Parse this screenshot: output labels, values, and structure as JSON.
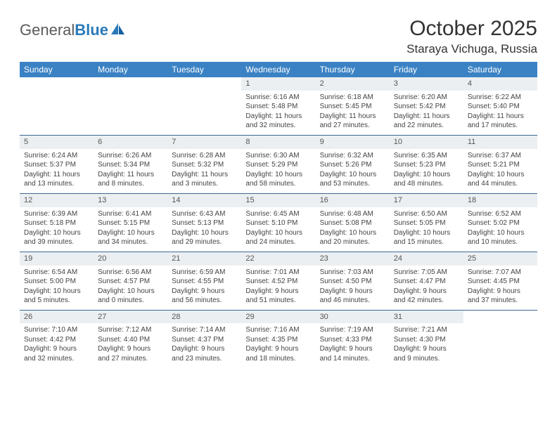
{
  "logo": {
    "text1": "General",
    "text2": "Blue"
  },
  "title": "October 2025",
  "location": "Staraya Vichuga, Russia",
  "colors": {
    "header_bg": "#3b82c4",
    "header_text": "#ffffff",
    "daynum_bg": "#eceff1",
    "row_border": "#3b6a94",
    "text": "#444444",
    "logo_gray": "#5a5a5a",
    "logo_blue": "#2a7ab8"
  },
  "weekdays": [
    "Sunday",
    "Monday",
    "Tuesday",
    "Wednesday",
    "Thursday",
    "Friday",
    "Saturday"
  ],
  "weeks": [
    [
      {
        "empty": true
      },
      {
        "empty": true
      },
      {
        "empty": true
      },
      {
        "num": "1",
        "l1": "Sunrise: 6:16 AM",
        "l2": "Sunset: 5:48 PM",
        "l3": "Daylight: 11 hours",
        "l4": "and 32 minutes."
      },
      {
        "num": "2",
        "l1": "Sunrise: 6:18 AM",
        "l2": "Sunset: 5:45 PM",
        "l3": "Daylight: 11 hours",
        "l4": "and 27 minutes."
      },
      {
        "num": "3",
        "l1": "Sunrise: 6:20 AM",
        "l2": "Sunset: 5:42 PM",
        "l3": "Daylight: 11 hours",
        "l4": "and 22 minutes."
      },
      {
        "num": "4",
        "l1": "Sunrise: 6:22 AM",
        "l2": "Sunset: 5:40 PM",
        "l3": "Daylight: 11 hours",
        "l4": "and 17 minutes."
      }
    ],
    [
      {
        "num": "5",
        "l1": "Sunrise: 6:24 AM",
        "l2": "Sunset: 5:37 PM",
        "l3": "Daylight: 11 hours",
        "l4": "and 13 minutes."
      },
      {
        "num": "6",
        "l1": "Sunrise: 6:26 AM",
        "l2": "Sunset: 5:34 PM",
        "l3": "Daylight: 11 hours",
        "l4": "and 8 minutes."
      },
      {
        "num": "7",
        "l1": "Sunrise: 6:28 AM",
        "l2": "Sunset: 5:32 PM",
        "l3": "Daylight: 11 hours",
        "l4": "and 3 minutes."
      },
      {
        "num": "8",
        "l1": "Sunrise: 6:30 AM",
        "l2": "Sunset: 5:29 PM",
        "l3": "Daylight: 10 hours",
        "l4": "and 58 minutes."
      },
      {
        "num": "9",
        "l1": "Sunrise: 6:32 AM",
        "l2": "Sunset: 5:26 PM",
        "l3": "Daylight: 10 hours",
        "l4": "and 53 minutes."
      },
      {
        "num": "10",
        "l1": "Sunrise: 6:35 AM",
        "l2": "Sunset: 5:23 PM",
        "l3": "Daylight: 10 hours",
        "l4": "and 48 minutes."
      },
      {
        "num": "11",
        "l1": "Sunrise: 6:37 AM",
        "l2": "Sunset: 5:21 PM",
        "l3": "Daylight: 10 hours",
        "l4": "and 44 minutes."
      }
    ],
    [
      {
        "num": "12",
        "l1": "Sunrise: 6:39 AM",
        "l2": "Sunset: 5:18 PM",
        "l3": "Daylight: 10 hours",
        "l4": "and 39 minutes."
      },
      {
        "num": "13",
        "l1": "Sunrise: 6:41 AM",
        "l2": "Sunset: 5:15 PM",
        "l3": "Daylight: 10 hours",
        "l4": "and 34 minutes."
      },
      {
        "num": "14",
        "l1": "Sunrise: 6:43 AM",
        "l2": "Sunset: 5:13 PM",
        "l3": "Daylight: 10 hours",
        "l4": "and 29 minutes."
      },
      {
        "num": "15",
        "l1": "Sunrise: 6:45 AM",
        "l2": "Sunset: 5:10 PM",
        "l3": "Daylight: 10 hours",
        "l4": "and 24 minutes."
      },
      {
        "num": "16",
        "l1": "Sunrise: 6:48 AM",
        "l2": "Sunset: 5:08 PM",
        "l3": "Daylight: 10 hours",
        "l4": "and 20 minutes."
      },
      {
        "num": "17",
        "l1": "Sunrise: 6:50 AM",
        "l2": "Sunset: 5:05 PM",
        "l3": "Daylight: 10 hours",
        "l4": "and 15 minutes."
      },
      {
        "num": "18",
        "l1": "Sunrise: 6:52 AM",
        "l2": "Sunset: 5:02 PM",
        "l3": "Daylight: 10 hours",
        "l4": "and 10 minutes."
      }
    ],
    [
      {
        "num": "19",
        "l1": "Sunrise: 6:54 AM",
        "l2": "Sunset: 5:00 PM",
        "l3": "Daylight: 10 hours",
        "l4": "and 5 minutes."
      },
      {
        "num": "20",
        "l1": "Sunrise: 6:56 AM",
        "l2": "Sunset: 4:57 PM",
        "l3": "Daylight: 10 hours",
        "l4": "and 0 minutes."
      },
      {
        "num": "21",
        "l1": "Sunrise: 6:59 AM",
        "l2": "Sunset: 4:55 PM",
        "l3": "Daylight: 9 hours",
        "l4": "and 56 minutes."
      },
      {
        "num": "22",
        "l1": "Sunrise: 7:01 AM",
        "l2": "Sunset: 4:52 PM",
        "l3": "Daylight: 9 hours",
        "l4": "and 51 minutes."
      },
      {
        "num": "23",
        "l1": "Sunrise: 7:03 AM",
        "l2": "Sunset: 4:50 PM",
        "l3": "Daylight: 9 hours",
        "l4": "and 46 minutes."
      },
      {
        "num": "24",
        "l1": "Sunrise: 7:05 AM",
        "l2": "Sunset: 4:47 PM",
        "l3": "Daylight: 9 hours",
        "l4": "and 42 minutes."
      },
      {
        "num": "25",
        "l1": "Sunrise: 7:07 AM",
        "l2": "Sunset: 4:45 PM",
        "l3": "Daylight: 9 hours",
        "l4": "and 37 minutes."
      }
    ],
    [
      {
        "num": "26",
        "l1": "Sunrise: 7:10 AM",
        "l2": "Sunset: 4:42 PM",
        "l3": "Daylight: 9 hours",
        "l4": "and 32 minutes."
      },
      {
        "num": "27",
        "l1": "Sunrise: 7:12 AM",
        "l2": "Sunset: 4:40 PM",
        "l3": "Daylight: 9 hours",
        "l4": "and 27 minutes."
      },
      {
        "num": "28",
        "l1": "Sunrise: 7:14 AM",
        "l2": "Sunset: 4:37 PM",
        "l3": "Daylight: 9 hours",
        "l4": "and 23 minutes."
      },
      {
        "num": "29",
        "l1": "Sunrise: 7:16 AM",
        "l2": "Sunset: 4:35 PM",
        "l3": "Daylight: 9 hours",
        "l4": "and 18 minutes."
      },
      {
        "num": "30",
        "l1": "Sunrise: 7:19 AM",
        "l2": "Sunset: 4:33 PM",
        "l3": "Daylight: 9 hours",
        "l4": "and 14 minutes."
      },
      {
        "num": "31",
        "l1": "Sunrise: 7:21 AM",
        "l2": "Sunset: 4:30 PM",
        "l3": "Daylight: 9 hours",
        "l4": "and 9 minutes."
      },
      {
        "empty": true
      }
    ]
  ]
}
